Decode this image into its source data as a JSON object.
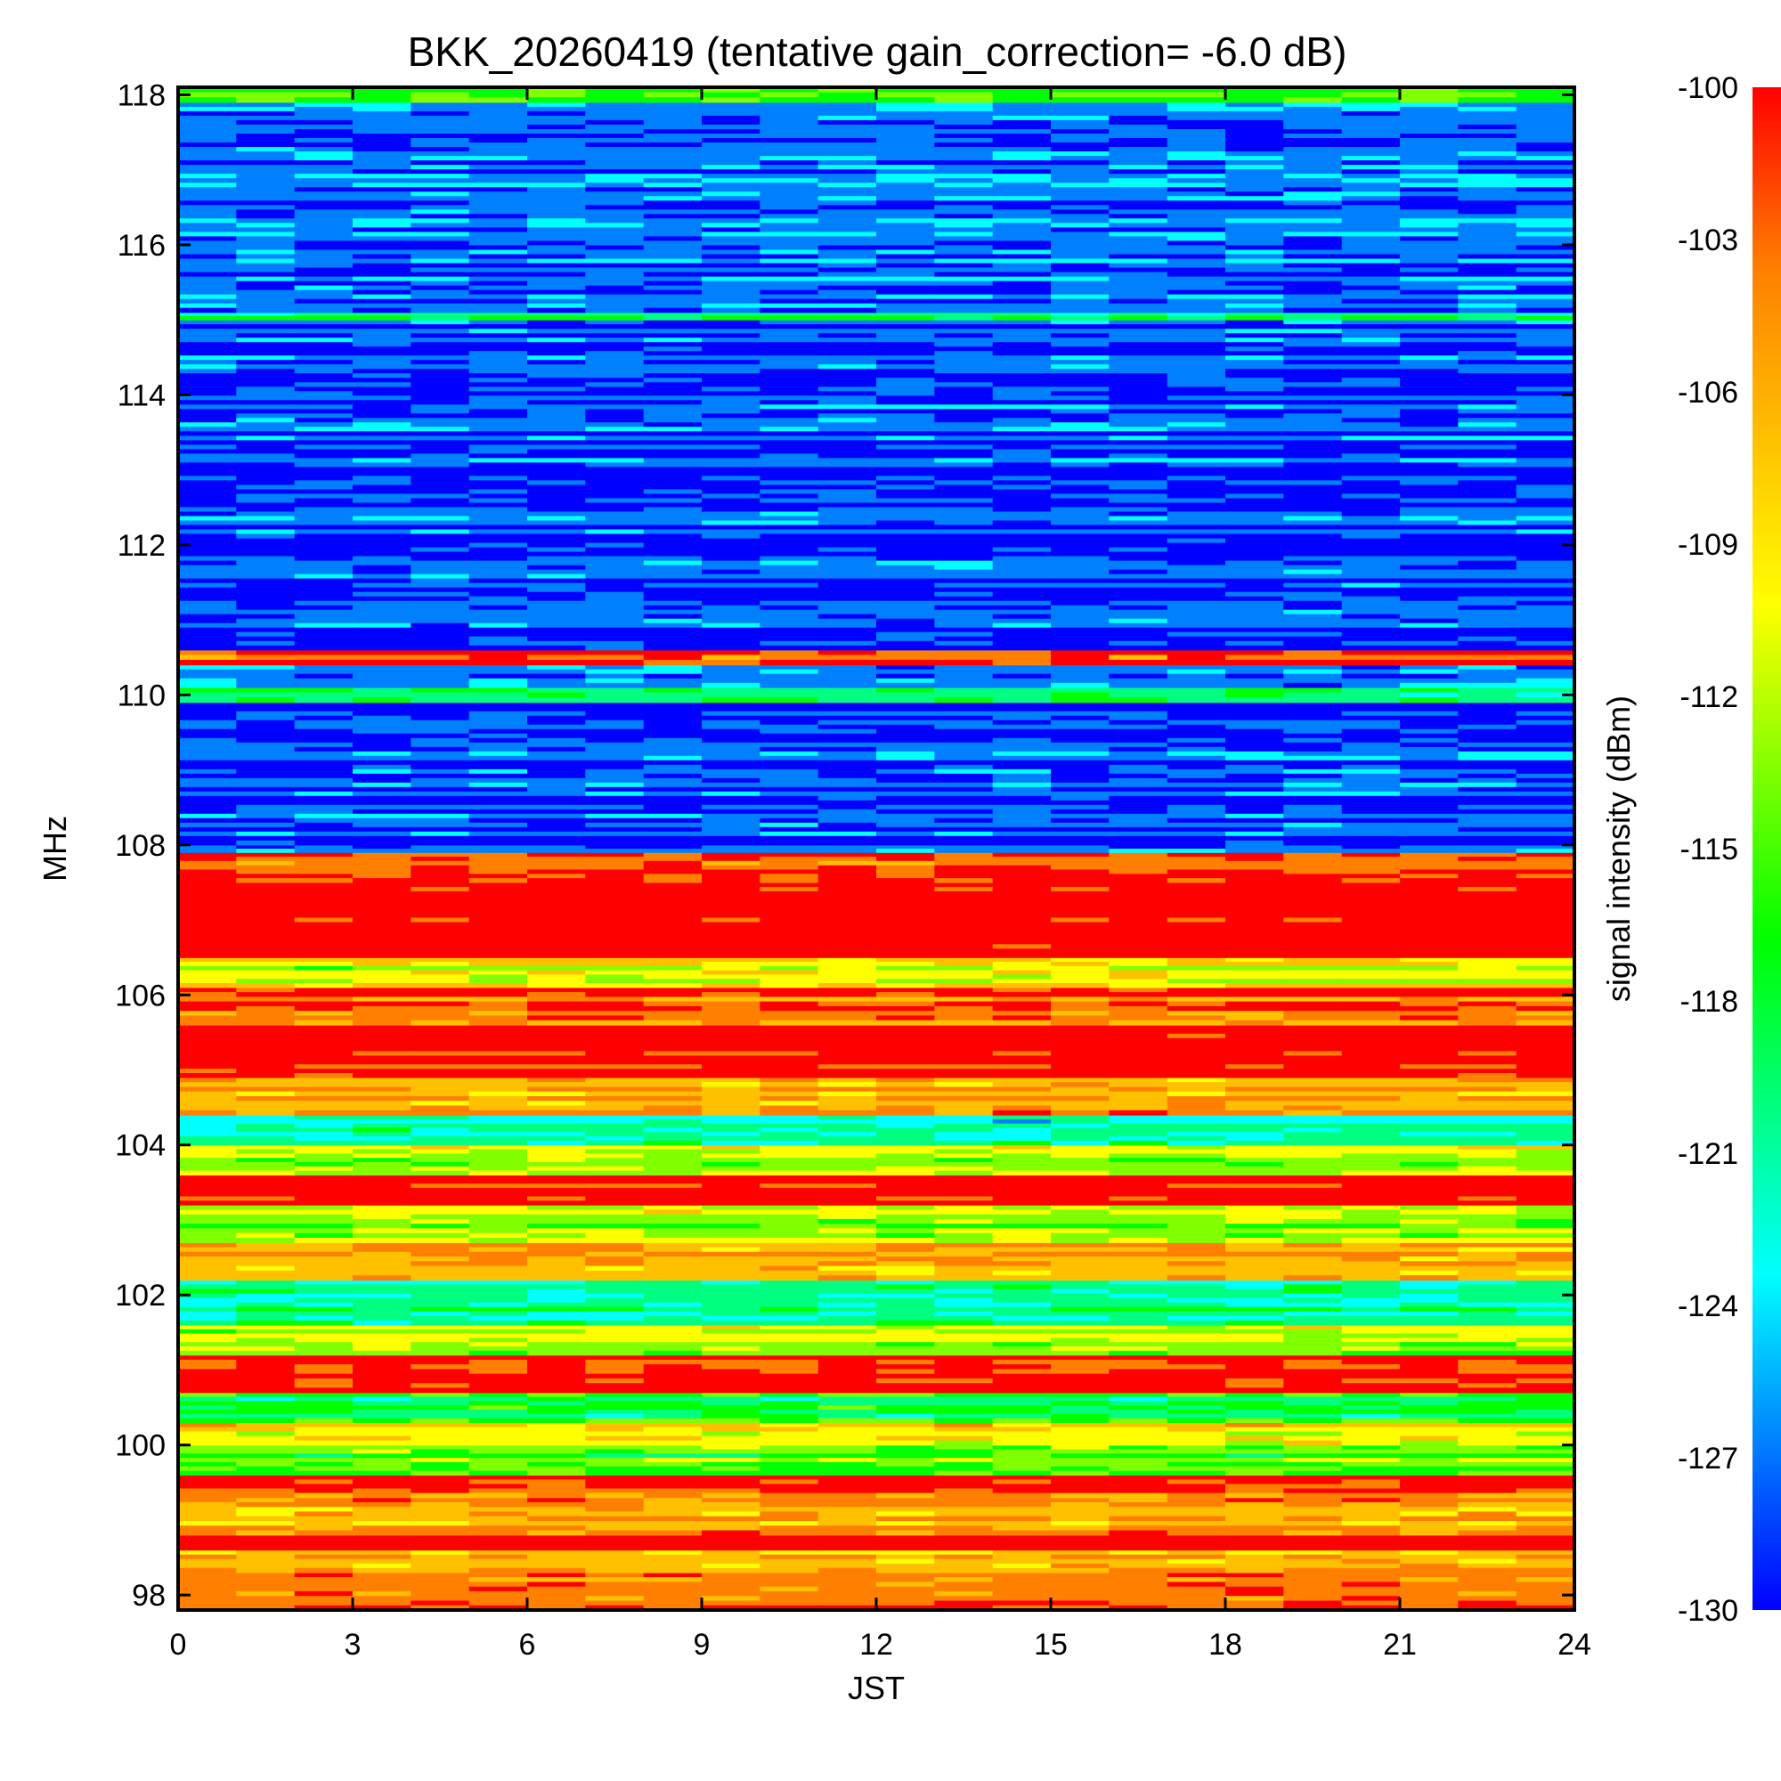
{
  "chart_data": {
    "type": "heatmap",
    "title": "BKK_20260419 (tentative gain_correction= -6.0 dB)",
    "xlabel": "JST",
    "ylabel": "MHz",
    "colorbar_label": "signal intensity (dBm)",
    "xlim": [
      0,
      24
    ],
    "ylim": [
      97.8,
      118.1
    ],
    "x_ticks": [
      0,
      3,
      6,
      9,
      12,
      15,
      18,
      21,
      24
    ],
    "x_tick_labels": [
      "0",
      "3",
      "6",
      "9",
      "12",
      "15",
      "18",
      "21",
      "24"
    ],
    "y_ticks": [
      98,
      100,
      102,
      104,
      106,
      108,
      110,
      112,
      114,
      116,
      118
    ],
    "y_tick_labels": [
      "98",
      "100",
      "102",
      "104",
      "106",
      "108",
      "110",
      "112",
      "114",
      "116",
      "118"
    ],
    "clim": [
      -130,
      -100
    ],
    "colorbar_ticks": [
      -100,
      -103,
      -106,
      -109,
      -112,
      -115,
      -118,
      -121,
      -124,
      -127,
      -130
    ],
    "colorbar_tick_labels": [
      "-100",
      "-103",
      "-106",
      "-109",
      "-112",
      "-115",
      "-118",
      "-121",
      "-124",
      "-127",
      "-130"
    ],
    "colormap": [
      "#0000ff",
      "#0080ff",
      "#00ffff",
      "#00ff80",
      "#00ff00",
      "#80ff00",
      "#ffff00",
      "#ffc000",
      "#ff8000",
      "#ff0000"
    ],
    "frequency_bands": [
      {
        "from_mhz": 97.8,
        "to_mhz": 98.3,
        "level_dbm": -105
      },
      {
        "from_mhz": 98.3,
        "to_mhz": 98.6,
        "level_dbm": -109
      },
      {
        "from_mhz": 98.6,
        "to_mhz": 98.8,
        "level_dbm": -100
      },
      {
        "from_mhz": 98.8,
        "to_mhz": 99.3,
        "level_dbm": -106
      },
      {
        "from_mhz": 99.3,
        "to_mhz": 99.6,
        "level_dbm": -103
      },
      {
        "from_mhz": 99.6,
        "to_mhz": 100.0,
        "level_dbm": -114
      },
      {
        "from_mhz": 100.0,
        "to_mhz": 100.3,
        "level_dbm": -110
      },
      {
        "from_mhz": 100.3,
        "to_mhz": 100.7,
        "level_dbm": -117
      },
      {
        "from_mhz": 100.7,
        "to_mhz": 101.2,
        "level_dbm": -101
      },
      {
        "from_mhz": 101.2,
        "to_mhz": 101.6,
        "level_dbm": -112
      },
      {
        "from_mhz": 101.6,
        "to_mhz": 102.2,
        "level_dbm": -120
      },
      {
        "from_mhz": 102.2,
        "to_mhz": 102.7,
        "level_dbm": -107
      },
      {
        "from_mhz": 102.7,
        "to_mhz": 103.2,
        "level_dbm": -113
      },
      {
        "from_mhz": 103.2,
        "to_mhz": 103.6,
        "level_dbm": -101
      },
      {
        "from_mhz": 103.6,
        "to_mhz": 104.0,
        "level_dbm": -112
      },
      {
        "from_mhz": 104.0,
        "to_mhz": 104.4,
        "level_dbm": -122
      },
      {
        "from_mhz": 104.4,
        "to_mhz": 104.9,
        "level_dbm": -106
      },
      {
        "from_mhz": 104.9,
        "to_mhz": 105.6,
        "level_dbm": -101
      },
      {
        "from_mhz": 105.6,
        "to_mhz": 106.1,
        "level_dbm": -104
      },
      {
        "from_mhz": 106.1,
        "to_mhz": 106.5,
        "level_dbm": -111
      },
      {
        "from_mhz": 106.5,
        "to_mhz": 107.5,
        "level_dbm": -100
      },
      {
        "from_mhz": 107.5,
        "to_mhz": 107.9,
        "level_dbm": -104
      },
      {
        "from_mhz": 107.9,
        "to_mhz": 108.0,
        "level_dbm": -124
      },
      {
        "from_mhz": 108.0,
        "to_mhz": 109.9,
        "level_dbm": -127
      },
      {
        "from_mhz": 109.9,
        "to_mhz": 110.1,
        "level_dbm": -117
      },
      {
        "from_mhz": 110.1,
        "to_mhz": 110.4,
        "level_dbm": -127
      },
      {
        "from_mhz": 110.4,
        "to_mhz": 110.6,
        "level_dbm": -103
      },
      {
        "from_mhz": 110.6,
        "to_mhz": 115.0,
        "level_dbm": -127
      },
      {
        "from_mhz": 115.0,
        "to_mhz": 115.1,
        "level_dbm": -118
      },
      {
        "from_mhz": 115.1,
        "to_mhz": 117.9,
        "level_dbm": -126
      },
      {
        "from_mhz": 117.9,
        "to_mhz": 118.1,
        "level_dbm": -115
      }
    ]
  }
}
